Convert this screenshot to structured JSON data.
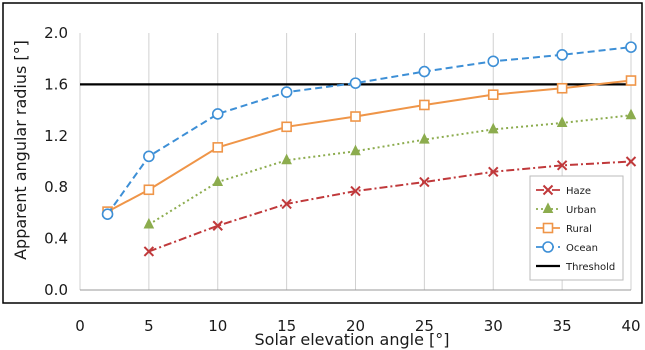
{
  "chart_data": {
    "type": "line",
    "xlabel": "Solar elevation angle [°]",
    "ylabel": "Apparent angular radius [°]",
    "xlim": [
      0,
      40
    ],
    "ylim": [
      0.0,
      2.0
    ],
    "x_ticks": [
      "0",
      "5",
      "10",
      "15",
      "20",
      "25",
      "30",
      "35",
      "40"
    ],
    "y_ticks": [
      "0.0",
      "0.4",
      "0.8",
      "1.2",
      "1.6",
      "2.0"
    ],
    "grid": "vertical",
    "legend_position": "bottom-right",
    "series": [
      {
        "name": "Haze",
        "color": "#c0393b",
        "dash": "dash-dot",
        "marker": "x",
        "x": [
          5,
          10,
          15,
          20,
          25,
          30,
          35,
          40
        ],
        "y": [
          0.3,
          0.5,
          0.67,
          0.77,
          0.84,
          0.92,
          0.97,
          1.0
        ]
      },
      {
        "name": "Urban",
        "color": "#8cac4e",
        "dash": "dotted",
        "marker": "triangle",
        "x": [
          5,
          10,
          15,
          20,
          25,
          30,
          35,
          40
        ],
        "y": [
          0.51,
          0.84,
          1.01,
          1.08,
          1.17,
          1.25,
          1.3,
          1.36
        ]
      },
      {
        "name": "Rural",
        "color": "#ef9548",
        "dash": "solid",
        "marker": "square",
        "x": [
          2,
          5,
          10,
          15,
          20,
          25,
          30,
          35,
          40
        ],
        "y": [
          0.61,
          0.78,
          1.11,
          1.27,
          1.35,
          1.44,
          1.52,
          1.57,
          1.63
        ]
      },
      {
        "name": "Ocean",
        "color": "#3d8fd6",
        "dash": "dashed",
        "marker": "circle",
        "x": [
          2,
          5,
          10,
          15,
          20,
          25,
          30,
          35,
          40
        ],
        "y": [
          0.59,
          1.04,
          1.37,
          1.54,
          1.61,
          1.7,
          1.78,
          1.83,
          1.89
        ]
      }
    ],
    "threshold": {
      "name": "Threshold",
      "color": "#000000",
      "y": 1.6
    }
  }
}
